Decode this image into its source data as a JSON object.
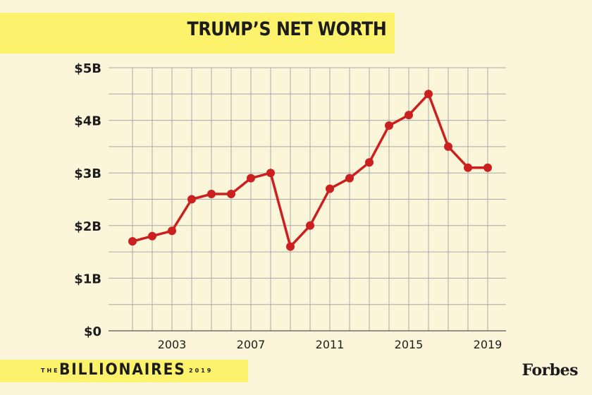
{
  "header": {
    "title": "TRUMP’S NET WORTH"
  },
  "footer": {
    "brand_prefix": "THE",
    "brand_name": "BILLIONAIRES",
    "brand_year": "2019",
    "publisher": "Forbes"
  },
  "colors": {
    "background": "#fbf6d9",
    "band": "#fdf26b",
    "line": "#cc1f1f",
    "grid": "#a9a9a9",
    "text": "#1c1c1c"
  },
  "chart_data": {
    "type": "line",
    "title": "TRUMP’S NET WORTH",
    "xlabel": "",
    "ylabel": "",
    "x": [
      2001,
      2002,
      2003,
      2004,
      2005,
      2006,
      2007,
      2008,
      2009,
      2010,
      2011,
      2012,
      2013,
      2014,
      2015,
      2016,
      2017,
      2018,
      2019
    ],
    "series": [
      {
        "values": [
          1.7,
          1.8,
          1.9,
          2.5,
          2.6,
          2.6,
          2.9,
          3.0,
          1.6,
          2.0,
          2.7,
          2.9,
          3.2,
          3.9,
          4.1,
          4.5,
          3.5,
          3.1,
          3.1
        ]
      }
    ],
    "unit": "billions USD",
    "ylim": [
      0,
      5
    ],
    "xlim": [
      2000,
      2019.5
    ],
    "y_ticks": [
      0,
      1,
      2,
      3,
      4,
      5
    ],
    "y_tick_labels": [
      "$0",
      "$1B",
      "$2B",
      "$3B",
      "$4B",
      "$5B"
    ],
    "x_ticks": [
      2003,
      2007,
      2011,
      2015,
      2019
    ],
    "x_tick_labels": [
      "2003",
      "2007",
      "2011",
      "2015",
      "2019"
    ],
    "grid": true,
    "legend": "none"
  }
}
